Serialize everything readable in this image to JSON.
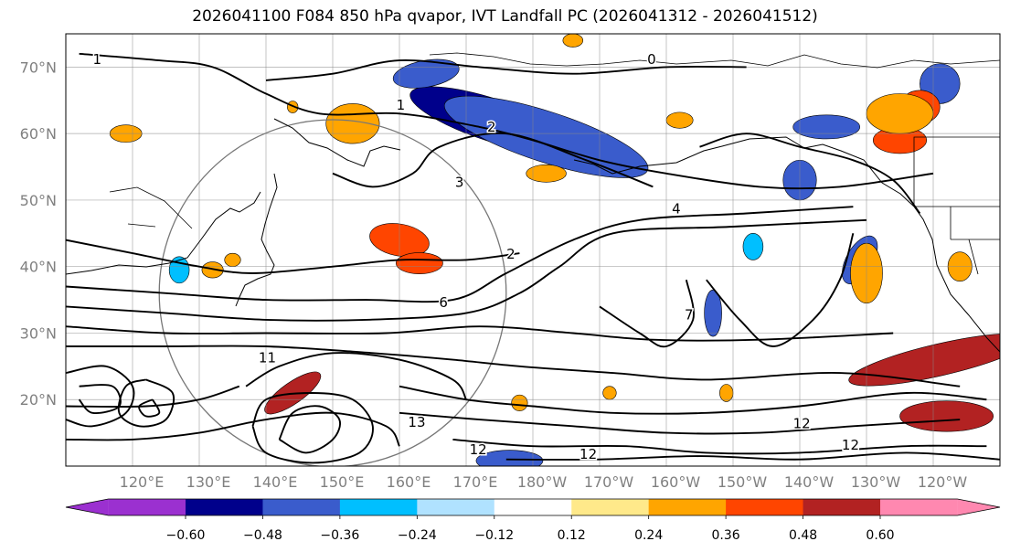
{
  "chart_data": {
    "type": "map-contour",
    "title": "2026041100 F084 850 hPa qvapor, IVT Landfall PC (2026041312 - 2026041512)",
    "lon_ticks": [
      "120°E",
      "130°E",
      "140°E",
      "150°E",
      "160°E",
      "170°E",
      "180°W",
      "170°W",
      "160°W",
      "150°W",
      "140°W",
      "130°W",
      "120°W"
    ],
    "lat_ticks": [
      "70°N",
      "60°N",
      "50°N",
      "40°N",
      "30°N",
      "20°N"
    ],
    "lon_range": [
      110,
      250
    ],
    "lat_range": [
      10,
      75
    ],
    "colorbar": {
      "ticks": [
        "−0.60",
        "−0.48",
        "−0.36",
        "−0.24",
        "−0.12",
        "0.12",
        "0.24",
        "0.36",
        "0.48",
        "0.60"
      ],
      "tick_values": [
        -0.6,
        -0.48,
        -0.36,
        -0.24,
        -0.12,
        0.12,
        0.24,
        0.36,
        0.48,
        0.6
      ],
      "colors": [
        "#9b30d0",
        "#00008b",
        "#3a5ccc",
        "#00bfff",
        "#b0e2ff",
        "#ffffff",
        "#ffe98a",
        "#ffa500",
        "#ff4500",
        "#b22222",
        "#ff88b0"
      ],
      "extend": "both"
    },
    "contour_labels": [
      {
        "text": "1",
        "lon": 114.7,
        "lat": 71.1
      },
      {
        "text": "0",
        "lon": 197.8,
        "lat": 71.1
      },
      {
        "text": "1",
        "lon": 160.2,
        "lat": 64.2
      },
      {
        "text": "2",
        "lon": 173.8,
        "lat": 60.9
      },
      {
        "text": "3",
        "lon": 169.0,
        "lat": 52.6
      },
      {
        "text": "4",
        "lon": 201.5,
        "lat": 48.6
      },
      {
        "text": "2",
        "lon": 176.7,
        "lat": 41.8
      },
      {
        "text": "6",
        "lon": 166.6,
        "lat": 34.5
      },
      {
        "text": "7",
        "lon": 203.4,
        "lat": 32.7
      },
      {
        "text": "13",
        "lon": 162.6,
        "lat": 16.5
      },
      {
        "text": "12",
        "lon": 171.8,
        "lat": 12.4
      },
      {
        "text": "12",
        "lon": 188.3,
        "lat": 11.7
      },
      {
        "text": "12",
        "lon": 227.6,
        "lat": 13.1
      },
      {
        "text": "12",
        "lon": 220.3,
        "lat": 16.3
      },
      {
        "text": "11",
        "lon": 140.2,
        "lat": 26.2
      }
    ],
    "filled_regions": [
      {
        "category": "-0.48",
        "lon": 174.0,
        "lat": 62.0,
        "rx": 13,
        "ry": 3.2,
        "rot": 18
      },
      {
        "category": "-0.36",
        "lon": 182.0,
        "lat": 59.5,
        "rx": 16,
        "ry": 3.8,
        "rot": 18
      },
      {
        "category": "-0.36",
        "lon": 164.0,
        "lat": 69.0,
        "rx": 5,
        "ry": 2,
        "rot": -10
      },
      {
        "category": "-0.36",
        "lon": 241.0,
        "lat": 67.5,
        "rx": 3,
        "ry": 3,
        "rot": 0
      },
      {
        "category": "-0.36",
        "lon": 224.0,
        "lat": 61.0,
        "rx": 5,
        "ry": 1.8,
        "rot": 0
      },
      {
        "category": "-0.36",
        "lon": 220.0,
        "lat": 53.0,
        "rx": 2.5,
        "ry": 3,
        "rot": 0
      },
      {
        "category": "-0.36",
        "lon": 229.0,
        "lat": 41.0,
        "rx": 2,
        "ry": 4,
        "rot": 30
      },
      {
        "category": "-0.36",
        "lon": 207.0,
        "lat": 33.0,
        "rx": 1.3,
        "ry": 3.5,
        "rot": 0
      },
      {
        "category": "-0.36",
        "lon": 176.5,
        "lat": 10.8,
        "rx": 5,
        "ry": 1.6,
        "rot": 0
      },
      {
        "category": "-0.24",
        "lon": 127.0,
        "lat": 39.5,
        "rx": 1.5,
        "ry": 2,
        "rot": 0
      },
      {
        "category": "-0.24",
        "lon": 213.0,
        "lat": 43.0,
        "rx": 1.5,
        "ry": 2,
        "rot": 0
      },
      {
        "category": "0.36",
        "lon": 160.0,
        "lat": 44.0,
        "rx": 4.5,
        "ry": 2.4,
        "rot": 10
      },
      {
        "category": "0.36",
        "lon": 163.0,
        "lat": 40.5,
        "rx": 3.5,
        "ry": 1.6,
        "rot": 0
      },
      {
        "category": "0.36",
        "lon": 238.0,
        "lat": 64.0,
        "rx": 3,
        "ry": 2.5,
        "rot": 0
      },
      {
        "category": "0.36",
        "lon": 235.0,
        "lat": 59.0,
        "rx": 4,
        "ry": 2,
        "rot": 0
      },
      {
        "category": "0.48",
        "lon": 241.0,
        "lat": 26.0,
        "rx": 14,
        "ry": 2.4,
        "rot": -13
      },
      {
        "category": "0.48",
        "lon": 242.0,
        "lat": 17.5,
        "rx": 7,
        "ry": 2.3,
        "rot": 0
      },
      {
        "category": "0.48",
        "lon": 144.0,
        "lat": 21.0,
        "rx": 5,
        "ry": 1.6,
        "rot": -35
      },
      {
        "category": "0.24",
        "lon": 153.0,
        "lat": 61.5,
        "rx": 4,
        "ry": 3,
        "rot": 0
      },
      {
        "category": "0.24",
        "lon": 119.0,
        "lat": 60.0,
        "rx": 2.4,
        "ry": 1.3,
        "rot": 0
      },
      {
        "category": "0.24",
        "lon": 182.0,
        "lat": 54.0,
        "rx": 3,
        "ry": 1.3,
        "rot": 0
      },
      {
        "category": "0.24",
        "lon": 230.0,
        "lat": 39.0,
        "rx": 2.4,
        "ry": 4.5,
        "rot": 0
      },
      {
        "category": "0.24",
        "lon": 235.0,
        "lat": 63.0,
        "rx": 5,
        "ry": 3,
        "rot": 0
      },
      {
        "category": "0.24",
        "lon": 202.0,
        "lat": 62.0,
        "rx": 2,
        "ry": 1.2,
        "rot": 0
      },
      {
        "category": "0.24",
        "lon": 132.0,
        "lat": 39.5,
        "rx": 1.6,
        "ry": 1.2,
        "rot": 0
      },
      {
        "category": "0.24",
        "lon": 178.0,
        "lat": 19.5,
        "rx": 1.2,
        "ry": 1.2,
        "rot": 0
      },
      {
        "category": "0.24",
        "lon": 191.5,
        "lat": 21.0,
        "rx": 1.0,
        "ry": 1.0,
        "rot": 0
      },
      {
        "category": "0.24",
        "lon": 209.0,
        "lat": 21.0,
        "rx": 1.0,
        "ry": 1.3,
        "rot": 0
      },
      {
        "category": "0.24",
        "lon": 135.0,
        "lat": 41.0,
        "rx": 1.2,
        "ry": 1.0,
        "rot": 0
      },
      {
        "category": "0.24",
        "lon": 144.0,
        "lat": 64.0,
        "rx": 0.8,
        "ry": 0.9,
        "rot": 0
      },
      {
        "category": "0.24",
        "lon": 186.0,
        "lat": 74.0,
        "rx": 1.5,
        "ry": 1.0,
        "rot": 0
      },
      {
        "category": "0.24",
        "lon": 244.0,
        "lat": 40.0,
        "rx": 1.8,
        "ry": 2.2,
        "rot": 0
      }
    ],
    "contour_lines": [
      [
        [
          110,
          44
        ],
        [
          120,
          42
        ],
        [
          130,
          40
        ],
        [
          138,
          39
        ],
        [
          150,
          40
        ],
        [
          160,
          41
        ],
        [
          170,
          41
        ],
        [
          178,
          42
        ]
      ],
      [
        [
          110,
          37
        ],
        [
          125,
          36
        ],
        [
          140,
          35
        ],
        [
          155,
          35
        ],
        [
          168,
          35
        ],
        [
          176,
          39
        ],
        [
          186,
          44
        ],
        [
          196,
          47
        ],
        [
          212,
          48
        ],
        [
          228,
          49
        ]
      ],
      [
        [
          110,
          34
        ],
        [
          125,
          33
        ],
        [
          140,
          32
        ],
        [
          155,
          32
        ],
        [
          170,
          33
        ],
        [
          178,
          36
        ],
        [
          184,
          40
        ],
        [
          192,
          45
        ],
        [
          210,
          46
        ],
        [
          230,
          47
        ]
      ],
      [
        [
          110,
          31
        ],
        [
          125,
          30
        ],
        [
          140,
          30
        ],
        [
          158,
          30
        ],
        [
          172,
          31
        ],
        [
          186,
          30
        ],
        [
          198,
          29
        ],
        [
          214,
          29
        ],
        [
          234,
          30
        ]
      ],
      [
        [
          110,
          28
        ],
        [
          125,
          28
        ],
        [
          140,
          28
        ],
        [
          156,
          27
        ],
        [
          168,
          26
        ],
        [
          178,
          25
        ],
        [
          192,
          24
        ],
        [
          206,
          23
        ],
        [
          226,
          24
        ],
        [
          244,
          22
        ]
      ],
      [
        [
          137,
          22
        ],
        [
          142,
          25
        ],
        [
          150,
          27
        ],
        [
          160,
          26
        ],
        [
          168,
          23
        ],
        [
          170,
          20
        ]
      ],
      [
        [
          110,
          19
        ],
        [
          122,
          19
        ],
        [
          130,
          20
        ],
        [
          136,
          22
        ]
      ],
      [
        [
          110,
          14
        ],
        [
          120,
          14
        ],
        [
          130,
          15
        ],
        [
          140,
          17
        ],
        [
          150,
          18
        ],
        [
          158,
          16
        ],
        [
          160,
          13
        ]
      ],
      [
        [
          160,
          22
        ],
        [
          170,
          20
        ],
        [
          180,
          19
        ],
        [
          192,
          18
        ],
        [
          206,
          18
        ],
        [
          220,
          19
        ],
        [
          236,
          21
        ],
        [
          248,
          20
        ]
      ],
      [
        [
          160,
          18
        ],
        [
          172,
          17
        ],
        [
          186,
          16
        ],
        [
          200,
          15
        ],
        [
          214,
          15
        ],
        [
          228,
          16
        ],
        [
          244,
          17
        ]
      ],
      [
        [
          168,
          14
        ],
        [
          180,
          13
        ],
        [
          194,
          13
        ],
        [
          206,
          12
        ],
        [
          220,
          12
        ],
        [
          236,
          13
        ],
        [
          248,
          13
        ]
      ],
      [
        [
          176,
          11
        ],
        [
          190,
          11
        ],
        [
          205,
          11.5
        ],
        [
          220,
          11
        ],
        [
          236,
          12
        ],
        [
          250,
          11
        ]
      ],
      [
        [
          112,
          72
        ],
        [
          124,
          71
        ],
        [
          132,
          70
        ],
        [
          140,
          66
        ],
        [
          148,
          63
        ],
        [
          160,
          63
        ],
        [
          172,
          61
        ],
        [
          180,
          59
        ],
        [
          190,
          56
        ],
        [
          200,
          54
        ],
        [
          214,
          52
        ],
        [
          226,
          52
        ],
        [
          240,
          54
        ]
      ],
      [
        [
          140,
          68
        ],
        [
          150,
          69
        ],
        [
          160,
          71
        ],
        [
          172,
          70
        ],
        [
          186,
          69
        ],
        [
          200,
          70
        ],
        [
          212,
          70
        ]
      ],
      [
        [
          150,
          54
        ],
        [
          156,
          52
        ],
        [
          162,
          54
        ],
        [
          166,
          58
        ],
        [
          176,
          60
        ],
        [
          188,
          56
        ],
        [
          198,
          52
        ]
      ],
      [
        [
          205,
          58
        ],
        [
          212,
          60
        ],
        [
          220,
          58
        ],
        [
          228,
          56
        ],
        [
          234,
          53
        ],
        [
          238,
          48
        ]
      ],
      [
        [
          206,
          38
        ],
        [
          211,
          32
        ],
        [
          216,
          28
        ],
        [
          222,
          32
        ],
        [
          226,
          38
        ],
        [
          228,
          45
        ]
      ],
      [
        [
          190,
          34
        ],
        [
          196,
          30
        ],
        [
          200,
          28
        ],
        [
          204,
          32
        ],
        [
          203,
          38
        ]
      ],
      [
        [
          142,
          14
        ],
        [
          146,
          12
        ],
        [
          150,
          14
        ],
        [
          151,
          17
        ],
        [
          148,
          19
        ],
        [
          144,
          18
        ],
        [
          142,
          14
        ]
      ],
      [
        [
          138,
          16
        ],
        [
          140,
          12
        ],
        [
          147,
          10.5
        ],
        [
          154,
          12
        ],
        [
          156,
          16
        ],
        [
          153,
          20
        ],
        [
          147,
          21
        ],
        [
          140,
          20
        ],
        [
          138,
          16
        ]
      ],
      [
        [
          110,
          24
        ],
        [
          116,
          25
        ],
        [
          120,
          22
        ],
        [
          119,
          18
        ],
        [
          114,
          16
        ],
        [
          110,
          17
        ]
      ],
      [
        [
          112,
          22
        ],
        [
          117,
          22
        ],
        [
          118,
          19
        ],
        [
          114,
          18
        ],
        [
          112,
          20
        ]
      ],
      [
        [
          122,
          23
        ],
        [
          126,
          21
        ],
        [
          125,
          17
        ],
        [
          121,
          16
        ],
        [
          118,
          18
        ],
        [
          119,
          22
        ],
        [
          122,
          23
        ]
      ],
      [
        [
          123,
          20
        ],
        [
          124,
          18
        ],
        [
          122,
          17.5
        ],
        [
          121,
          19
        ],
        [
          123,
          20
        ]
      ]
    ],
    "circle": {
      "center_lon": 150,
      "center_lat": 36,
      "radius_lon": 26
    }
  }
}
